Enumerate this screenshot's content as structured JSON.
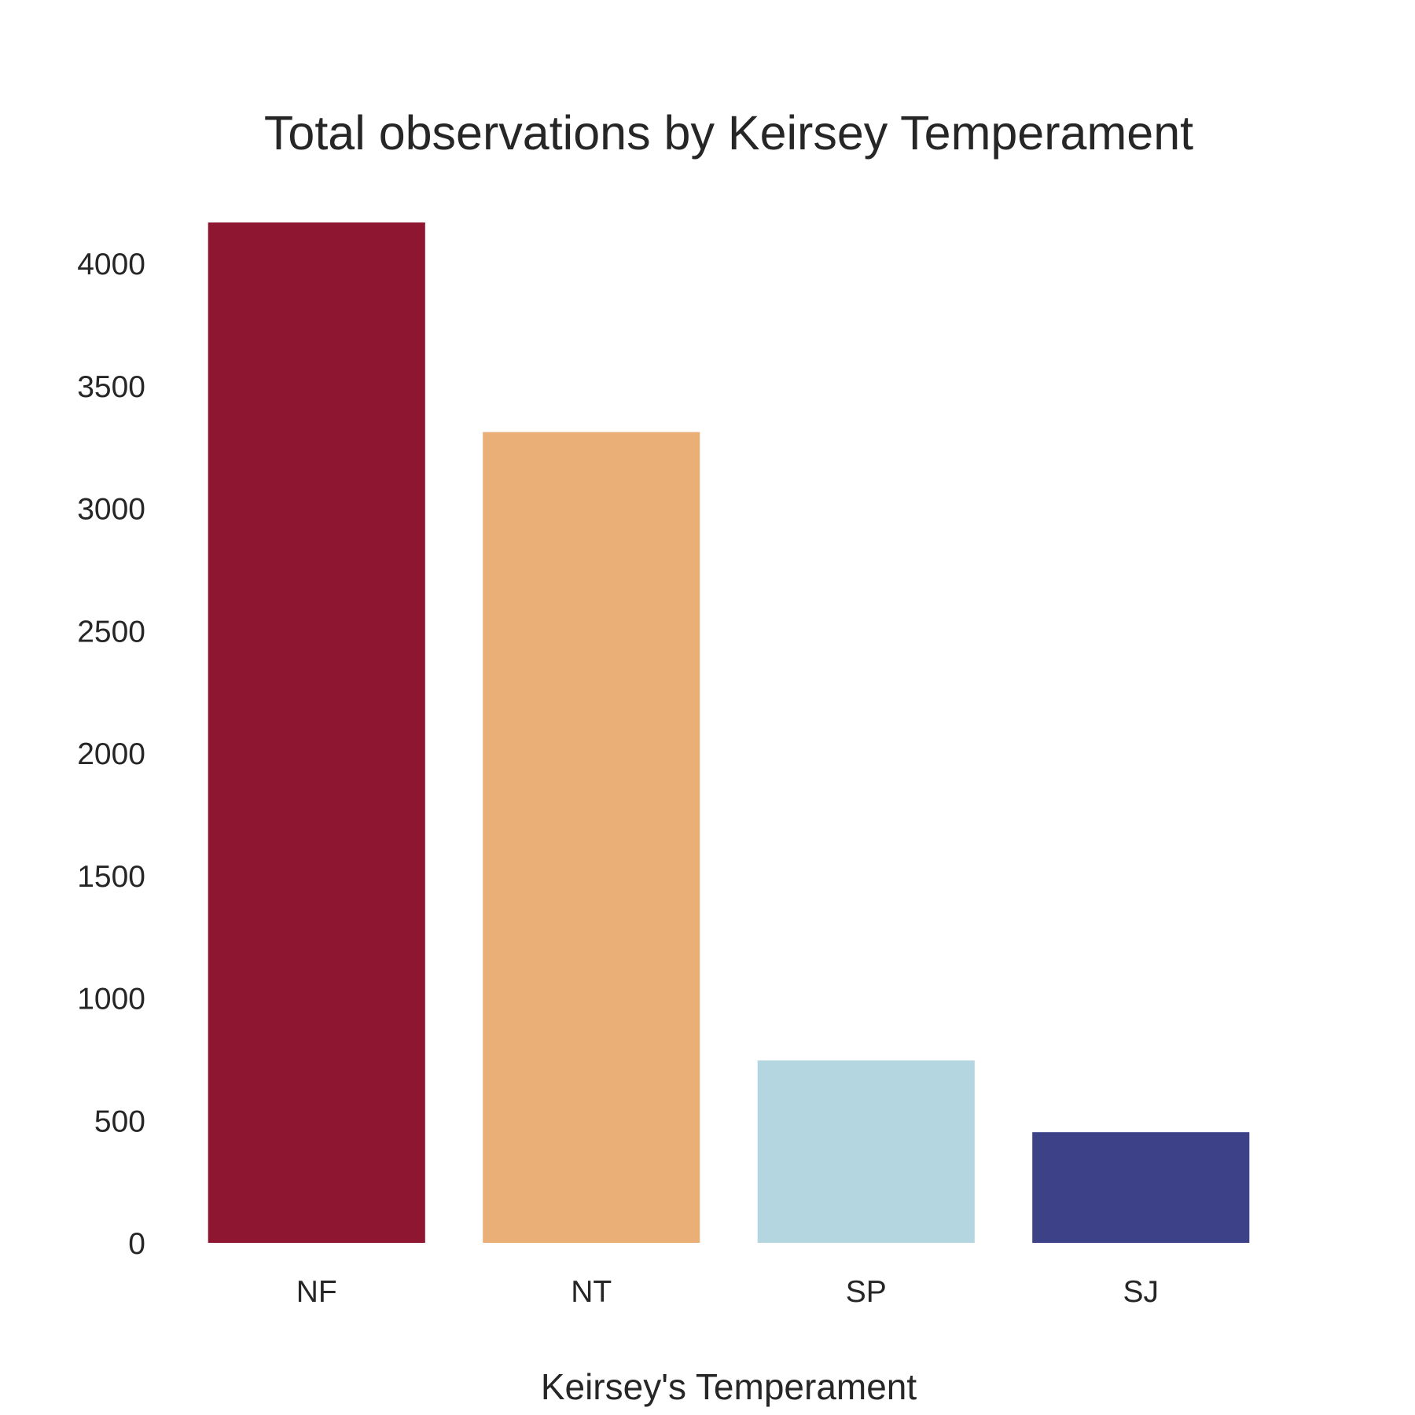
{
  "chart_data": {
    "type": "bar",
    "title": "Total observations by Keirsey Temperament",
    "xlabel": "Keirsey's Temperament",
    "ylabel": "",
    "categories": [
      "NF",
      "NT",
      "SP",
      "SJ"
    ],
    "values": [
      4167,
      3311,
      745,
      452
    ],
    "colors": [
      "#8e1631",
      "#eaae77",
      "#b4d6e1",
      "#3d4187"
    ],
    "ylim": [
      0,
      4167
    ],
    "yticks": [
      0,
      500,
      1000,
      1500,
      2000,
      2500,
      3000,
      3500,
      4000
    ],
    "ytick_labels": [
      "0",
      "500",
      "1000",
      "1500",
      "2000",
      "2500",
      "3000",
      "3500",
      "4000"
    ],
    "grid": false,
    "legend": "none"
  }
}
